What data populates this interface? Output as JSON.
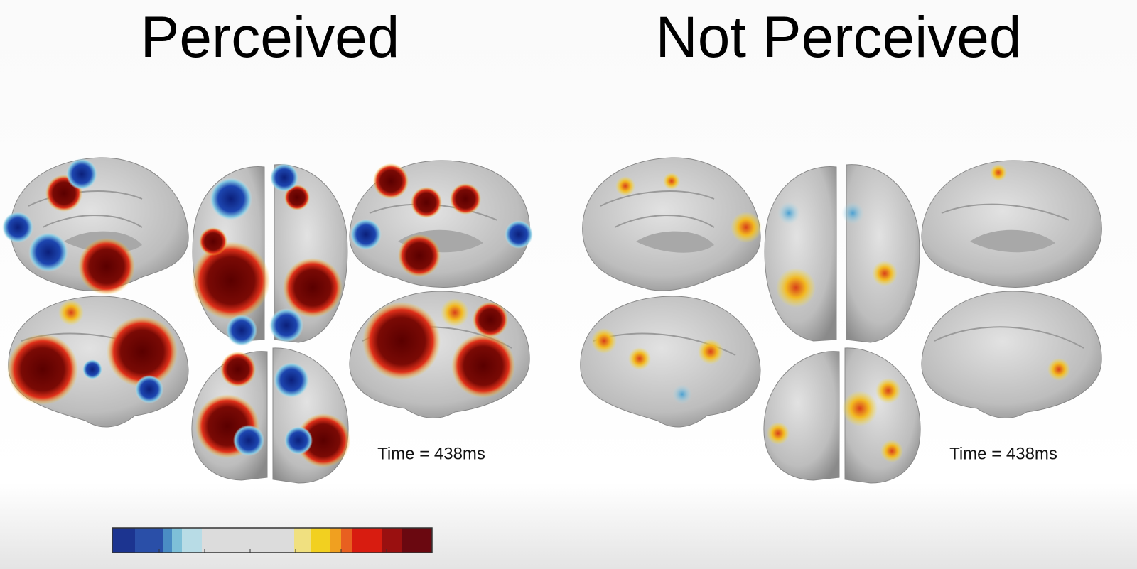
{
  "panels": [
    {
      "title": "Perceived",
      "time_label": "Time = 438ms"
    },
    {
      "title": "Not Perceived",
      "time_label": "Time = 438ms"
    }
  ]
}
